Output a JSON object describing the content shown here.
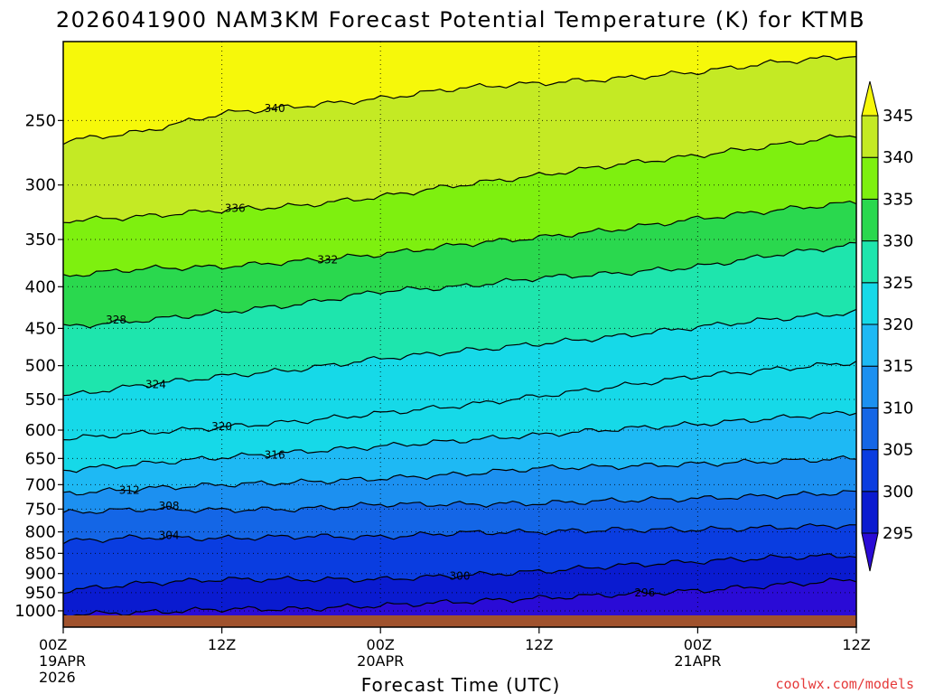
{
  "chart_data": {
    "type": "heatmap",
    "title": "2026041900 NAM3KM Forecast Potential Temperature (K) for KTMB",
    "xlabel": "Forecast Time (UTC)",
    "ylabel": "",
    "x_ticks": [
      {
        "hour": 0,
        "lines": [
          "00Z",
          "19APR",
          "2026"
        ]
      },
      {
        "hour": 12,
        "lines": [
          "12Z"
        ]
      },
      {
        "hour": 24,
        "lines": [
          "00Z",
          "20APR"
        ]
      },
      {
        "hour": 36,
        "lines": [
          "12Z"
        ]
      },
      {
        "hour": 48,
        "lines": [
          "00Z",
          "21APR"
        ]
      },
      {
        "hour": 60,
        "lines": [
          "12Z"
        ]
      }
    ],
    "xlim": [
      0,
      60
    ],
    "y_ticks": [
      250,
      300,
      350,
      400,
      450,
      500,
      550,
      600,
      650,
      700,
      750,
      800,
      850,
      900,
      950,
      1000
    ],
    "ylim_hpa": [
      200,
      1013
    ],
    "colorbar": {
      "levels": [
        295,
        300,
        305,
        310,
        315,
        320,
        325,
        330,
        335,
        340,
        345
      ],
      "colors": [
        "#2a0bd6",
        "#0a1bd0",
        "#0a3de0",
        "#1466e6",
        "#1c90f0",
        "#1eb9f4",
        "#16d9e8",
        "#1ee5ad",
        "#2ad84e",
        "#7ef00f",
        "#c4ea24",
        "#f6f80a"
      ],
      "extend": "both"
    },
    "series": [
      {
        "name": "296 K",
        "label": "296",
        "label_hour": 44,
        "points": [
          [
            0,
            1010
          ],
          [
            6,
            1005
          ],
          [
            12,
            995
          ],
          [
            18,
            995
          ],
          [
            24,
            985
          ],
          [
            30,
            975
          ],
          [
            36,
            965
          ],
          [
            42,
            955
          ],
          [
            48,
            945
          ],
          [
            54,
            930
          ],
          [
            60,
            915
          ]
        ]
      },
      {
        "name": "300 K",
        "label": "300",
        "label_hour": 30,
        "points": [
          [
            0,
            945
          ],
          [
            6,
            925
          ],
          [
            12,
            915
          ],
          [
            18,
            915
          ],
          [
            24,
            915
          ],
          [
            30,
            905
          ],
          [
            36,
            895
          ],
          [
            42,
            880
          ],
          [
            48,
            870
          ],
          [
            54,
            860
          ],
          [
            60,
            855
          ]
        ]
      },
      {
        "name": "304 K",
        "label": "304",
        "label_hour": 8,
        "points": [
          [
            0,
            822
          ],
          [
            6,
            812
          ],
          [
            12,
            815
          ],
          [
            18,
            810
          ],
          [
            24,
            812
          ],
          [
            30,
            802
          ],
          [
            36,
            800
          ],
          [
            42,
            795
          ],
          [
            48,
            795
          ],
          [
            54,
            790
          ],
          [
            60,
            785
          ]
        ]
      },
      {
        "name": "308 K",
        "label": "308",
        "label_hour": 8,
        "points": [
          [
            0,
            758
          ],
          [
            6,
            750
          ],
          [
            12,
            752
          ],
          [
            18,
            750
          ],
          [
            24,
            740
          ],
          [
            30,
            740
          ],
          [
            36,
            738
          ],
          [
            42,
            732
          ],
          [
            48,
            728
          ],
          [
            54,
            722
          ],
          [
            60,
            715
          ]
        ]
      },
      {
        "name": "312 K",
        "label": "312",
        "label_hour": 5,
        "points": [
          [
            0,
            718
          ],
          [
            6,
            708
          ],
          [
            12,
            700
          ],
          [
            18,
            695
          ],
          [
            24,
            688
          ],
          [
            30,
            680
          ],
          [
            36,
            668
          ],
          [
            42,
            665
          ],
          [
            48,
            660
          ],
          [
            54,
            655
          ],
          [
            60,
            650
          ]
        ]
      },
      {
        "name": "316 K",
        "label": "316",
        "label_hour": 16,
        "points": [
          [
            0,
            672
          ],
          [
            6,
            660
          ],
          [
            12,
            648
          ],
          [
            18,
            638
          ],
          [
            24,
            628
          ],
          [
            30,
            618
          ],
          [
            36,
            608
          ],
          [
            42,
            598
          ],
          [
            48,
            590
          ],
          [
            54,
            580
          ],
          [
            60,
            570
          ]
        ]
      },
      {
        "name": "320 K",
        "label": "320",
        "label_hour": 12,
        "points": [
          [
            0,
            615
          ],
          [
            6,
            605
          ],
          [
            12,
            595
          ],
          [
            18,
            585
          ],
          [
            24,
            572
          ],
          [
            30,
            560
          ],
          [
            36,
            545
          ],
          [
            42,
            530
          ],
          [
            48,
            515
          ],
          [
            54,
            505
          ],
          [
            60,
            495
          ]
        ]
      },
      {
        "name": "324 K",
        "label": "324",
        "label_hour": 7,
        "points": [
          [
            0,
            545
          ],
          [
            6,
            528
          ],
          [
            12,
            515
          ],
          [
            18,
            505
          ],
          [
            24,
            490
          ],
          [
            30,
            480
          ],
          [
            36,
            470
          ],
          [
            42,
            460
          ],
          [
            48,
            448
          ],
          [
            54,
            438
          ],
          [
            60,
            430
          ]
        ]
      },
      {
        "name": "328 K",
        "label": "328",
        "label_hour": 4,
        "points": [
          [
            0,
            448
          ],
          [
            6,
            440
          ],
          [
            12,
            430
          ],
          [
            18,
            420
          ],
          [
            24,
            405
          ],
          [
            30,
            400
          ],
          [
            36,
            390
          ],
          [
            42,
            385
          ],
          [
            48,
            378
          ],
          [
            54,
            365
          ],
          [
            60,
            355
          ]
        ]
      },
      {
        "name": "332 K",
        "label": "332",
        "label_hour": 20,
        "points": [
          [
            0,
            388
          ],
          [
            6,
            380
          ],
          [
            12,
            378
          ],
          [
            18,
            372
          ],
          [
            24,
            365
          ],
          [
            30,
            355
          ],
          [
            36,
            348
          ],
          [
            42,
            340
          ],
          [
            48,
            330
          ],
          [
            54,
            322
          ],
          [
            60,
            315
          ]
        ]
      },
      {
        "name": "336 K",
        "label": "336",
        "label_hour": 13,
        "points": [
          [
            0,
            332
          ],
          [
            6,
            328
          ],
          [
            12,
            322
          ],
          [
            18,
            318
          ],
          [
            24,
            310
          ],
          [
            30,
            300
          ],
          [
            36,
            292
          ],
          [
            42,
            283
          ],
          [
            48,
            276
          ],
          [
            54,
            268
          ],
          [
            60,
            260
          ]
        ]
      },
      {
        "name": "340 K",
        "label": "340",
        "label_hour": 16,
        "points": [
          [
            0,
            265
          ],
          [
            6,
            258
          ],
          [
            12,
            245
          ],
          [
            18,
            240
          ],
          [
            24,
            235
          ],
          [
            30,
            228
          ],
          [
            36,
            225
          ],
          [
            42,
            222
          ],
          [
            48,
            218
          ],
          [
            54,
            212
          ],
          [
            60,
            208
          ]
        ]
      }
    ]
  },
  "credit": "coolwx.com/models"
}
